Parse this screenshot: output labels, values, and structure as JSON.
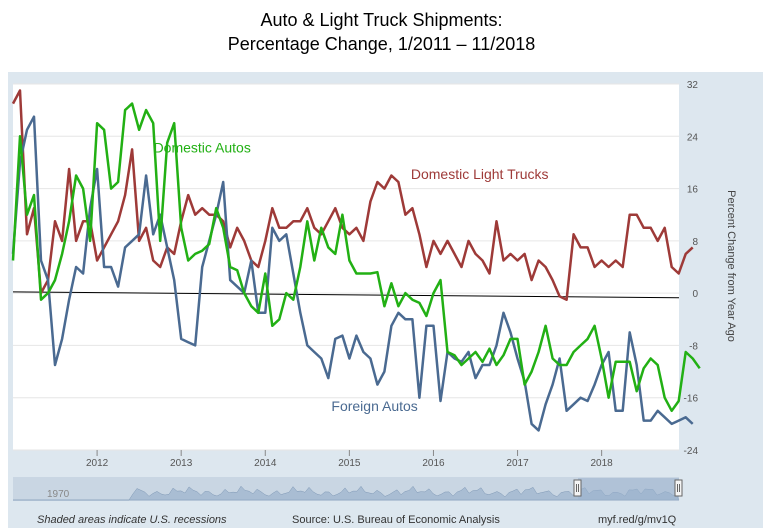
{
  "title": {
    "line1": "Auto & Light Truck Shipments:",
    "line2": "Percentage Change, 1/2011 – 11/2018"
  },
  "colors": {
    "domestic_autos": "#22b014",
    "domestic_light_trucks": "#9e3a38",
    "foreign_autos": "#4a6a91",
    "zero_line": "#000000",
    "plot_bg": "#ffffff",
    "panel_bg": "#dde7ef",
    "navigator_fill": "#a9bdd3"
  },
  "footer": {
    "recessions_note": "Shaded areas indicate U.S. recessions",
    "source": "Source: U.S. Bureau of Economic Analysis",
    "link": "myf.red/g/mv1Q"
  },
  "navigator": {
    "start_label": "1970"
  },
  "chart_data": {
    "type": "line",
    "title": "Auto & Light Truck Shipments: Percentage Change, 1/2011 – 11/2018",
    "xlabel": "",
    "ylabel": "Percent Change from Year Ago",
    "x_start": 2011.0,
    "x_step": 0.0833333,
    "xlim": [
      2011.0,
      2018.92
    ],
    "ylim": [
      -24,
      32
    ],
    "y_ticks": [
      32,
      24,
      16,
      8,
      0,
      -8,
      -16,
      -24
    ],
    "x_ticks": [
      {
        "v": 2012,
        "label": "2012"
      },
      {
        "v": 2013,
        "label": "2013"
      },
      {
        "v": 2014,
        "label": "2014"
      },
      {
        "v": 2015,
        "label": "2015"
      },
      {
        "v": 2016,
        "label": "2016"
      },
      {
        "v": 2017,
        "label": "2017"
      },
      {
        "v": 2018,
        "label": "2018"
      }
    ],
    "series": [
      {
        "key": "domestic_autos",
        "name": "Domestic Autos",
        "values": [
          5.0,
          24.0,
          12.0,
          15.0,
          -1.0,
          0.0,
          2.0,
          6.0,
          11.0,
          18.0,
          16.0,
          8.0,
          26.0,
          25.0,
          16.0,
          17.0,
          28.0,
          29.0,
          25.0,
          28.0,
          26.0,
          8.0,
          23.0,
          26.0,
          10.0,
          5.0,
          6.0,
          6.5,
          7.5,
          13.0,
          10.0,
          4.0,
          3.5,
          0.0,
          -2.0,
          -3.0,
          3.0,
          -5.0,
          -4.0,
          0.0,
          -1.0,
          4.0,
          11.0,
          5.0,
          10.0,
          7.0,
          6.0,
          12.0,
          5.0,
          3.0,
          3.0,
          3.0,
          3.2,
          -2.0,
          1.5,
          -2.0,
          0.0,
          -1.0,
          -1.5,
          -3.5,
          0.0,
          2.0,
          -9.0,
          -9.5,
          -11.0,
          -10.0,
          -9.0,
          -10.5,
          -8.5,
          -11.0,
          -9.5,
          -7.0,
          -7.0,
          -14.0,
          -12.0,
          -9.0,
          -5.0,
          -10.0,
          -11.0,
          -11.0,
          -9.0,
          -8.0,
          -7.0,
          -5.0,
          -10.0,
          -16.0,
          -10.5,
          -10.5,
          -10.5,
          -15.0,
          -11.5,
          -10.0,
          -11.0,
          -16.0,
          -18.0,
          -16.5,
          -9.0,
          -10.0,
          -11.5
        ]
      },
      {
        "key": "domestic_light_trucks",
        "name": "Domestic Light Trucks",
        "values": [
          29.0,
          31.0,
          9.0,
          13.0,
          0.0,
          2.0,
          11.0,
          8.0,
          19.0,
          8.0,
          11.0,
          11.0,
          5.0,
          7.0,
          9.0,
          11.0,
          15.0,
          22.0,
          8.0,
          10.0,
          5.0,
          4.0,
          7.0,
          6.0,
          11.0,
          15.0,
          12.0,
          13.0,
          12.0,
          12.0,
          11.0,
          7.0,
          10.0,
          8.0,
          5.0,
          4.0,
          8.0,
          13.0,
          10.0,
          10.0,
          11.0,
          11.0,
          13.0,
          10.0,
          9.0,
          11.0,
          13.0,
          10.0,
          9.0,
          10.0,
          8.0,
          14.0,
          17.0,
          16.0,
          18.0,
          17.0,
          12.0,
          13.0,
          9.0,
          4.0,
          8.0,
          6.0,
          8.0,
          6.0,
          4.0,
          8.0,
          6.0,
          5.0,
          3.0,
          11.0,
          5.0,
          6.0,
          5.0,
          6.0,
          2.0,
          5.0,
          4.0,
          2.0,
          -0.5,
          -1.0,
          9.0,
          7.0,
          7.0,
          4.0,
          5.0,
          4.0,
          5.0,
          4.0,
          12.0,
          12.0,
          10.0,
          10.0,
          8.0,
          10.0,
          4.0,
          3.0,
          6.0,
          7.0
        ]
      },
      {
        "key": "foreign_autos",
        "name": "Foreign Autos",
        "values": [
          6.0,
          20.0,
          25.0,
          27.0,
          5.0,
          2.0,
          -11.0,
          -7.0,
          -1.0,
          4.0,
          3.0,
          13.0,
          19.0,
          4.0,
          4.0,
          1.0,
          7.0,
          8.0,
          9.0,
          18.0,
          9.0,
          12.0,
          7.0,
          2.0,
          -7.0,
          -7.5,
          -8.0,
          4.0,
          8.0,
          12.0,
          17.0,
          2.0,
          1.0,
          0.0,
          5.0,
          -3.0,
          -3.0,
          10.0,
          8.0,
          9.0,
          3.0,
          -3.0,
          -8.0,
          -9.0,
          -10.0,
          -13.0,
          -7.0,
          -6.5,
          -10.0,
          -6.5,
          -9.0,
          -10.0,
          -14.0,
          -12.0,
          -5.0,
          -3.0,
          -4.0,
          -4.0,
          -16.0,
          -5.0,
          -5.0,
          -16.5,
          -9.0,
          -10.0,
          -10.5,
          -9.0,
          -13.0,
          -11.0,
          -11.0,
          -8.0,
          -3.0,
          -6.0,
          -10.0,
          -13.5,
          -20.0,
          -21.0,
          -17.0,
          -14.0,
          -10.0,
          -18.0,
          -17.0,
          -16.0,
          -16.5,
          -14.0,
          -11.0,
          -9.0,
          -18.0,
          -18.0,
          -6.0,
          -11.0,
          -19.5,
          -19.5,
          -18.0,
          -19.0,
          -20.0,
          -19.5,
          -19.0,
          -20.0
        ]
      }
    ],
    "annotations": [
      {
        "series": "domestic_autos",
        "text": "Domestic Autos",
        "x": 2013.25,
        "y": 21.5
      },
      {
        "series": "domestic_light_trucks",
        "text": "Domestic Light Trucks",
        "x": 2016.55,
        "y": 17.5
      },
      {
        "series": "foreign_autos",
        "text": "Foreign Autos",
        "x": 2015.3,
        "y": -18.0
      }
    ],
    "reference_line": {
      "from": [
        2011.0,
        0.2
      ],
      "to": [
        2018.92,
        -0.7
      ]
    }
  }
}
